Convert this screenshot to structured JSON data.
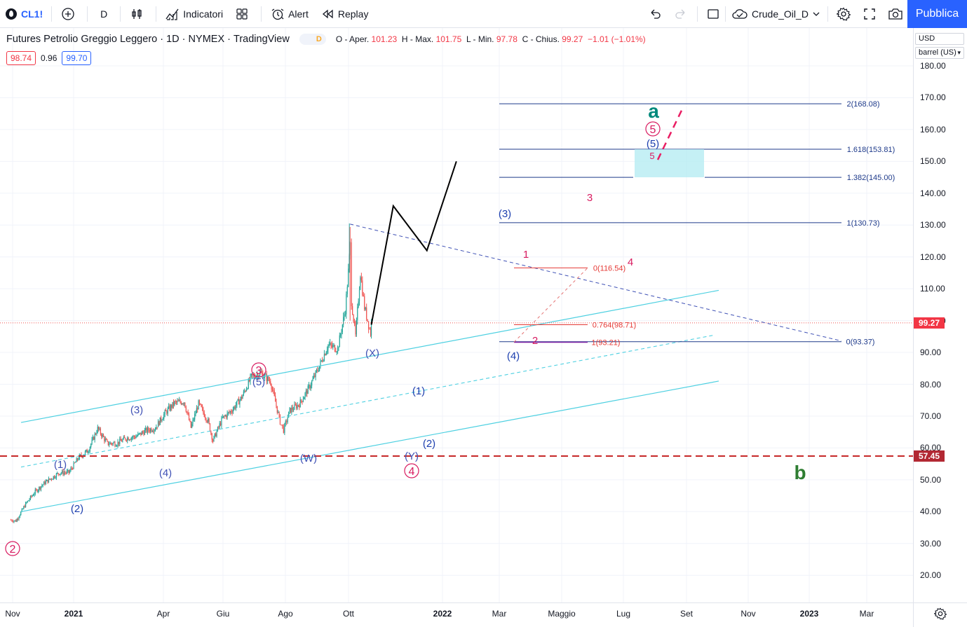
{
  "toolbar": {
    "symbol": "CL1!",
    "interval": "D",
    "indicators_label": "Indicatori",
    "alert_label": "Alert",
    "replay_label": "Replay",
    "layout_name": "Crude_Oil_D",
    "publish_label": "Pubblica"
  },
  "legend": {
    "title": "Futures Petrolio Greggio Leggero",
    "interval": "1D",
    "exchange": "NYMEX",
    "source": "TradingView",
    "badge": "D",
    "open_label": "O - Aper.",
    "open": "101.23",
    "high_label": "H - Max.",
    "high": "101.75",
    "low_label": "L - Min.",
    "low": "97.78",
    "close_label": "C - Chius.",
    "close": "99.27",
    "change": "−1.01 (−1.01%)",
    "bid": "98.74",
    "spread": "0.96",
    "ask": "99.70"
  },
  "price_axis": {
    "currency": "USD",
    "unit": "barrel (US)",
    "labels": [
      "180.00",
      "170.00",
      "160.00",
      "150.00",
      "140.00",
      "130.00",
      "120.00",
      "110.00",
      "100.00",
      "90.00",
      "80.00",
      "70.00",
      "60.00",
      "50.00",
      "40.00",
      "30.00",
      "20.00"
    ],
    "current_price": "99.27",
    "level_price": "57.45"
  },
  "time_axis": {
    "labels": [
      "Nov",
      "2021",
      "Apr",
      "Giu",
      "Ago",
      "Ott",
      "2022",
      "Mar",
      "Maggio",
      "Lug",
      "Set",
      "Nov",
      "2023",
      "Mar"
    ],
    "bold": [
      "2021",
      "2022",
      "2023"
    ]
  },
  "annotations": {
    "fib_ext": [
      "2(168.08)",
      "1.618(153.81)",
      "1.382(145.00)",
      "1(130.73)",
      "0(93.37)"
    ],
    "fib_retr": [
      "0(116.54)",
      "0.764(98.71)",
      "1(93.21)"
    ],
    "waves": [
      "(3)",
      "(4)",
      "(5)",
      "(1)",
      "(2)",
      "(X)",
      "(W)",
      "(Y)",
      "1",
      "2",
      "3",
      "4",
      "5",
      "a",
      "b"
    ],
    "circled": [
      "2",
      "3",
      "4",
      "5"
    ]
  },
  "colors": {
    "up": "#26a69a",
    "down": "#ef5350",
    "accent": "#2962ff",
    "channel": "#4dd0e1",
    "fib_blue": "#1e3a8a",
    "wave_red": "#d81b60",
    "level_red": "#c62828"
  },
  "chart_data": {
    "type": "candlestick",
    "title": "Futures Petrolio Greggio Leggero · 1D · NYMEX",
    "close_series": [
      {
        "date": "2020-10-28",
        "close": 37.4
      },
      {
        "date": "2020-11-06",
        "close": 37.1
      },
      {
        "date": "2020-11-20",
        "close": 42.4
      },
      {
        "date": "2020-12-04",
        "close": 46.3
      },
      {
        "date": "2020-12-18",
        "close": 49.1
      },
      {
        "date": "2021-01-08",
        "close": 52.2
      },
      {
        "date": "2021-01-22",
        "close": 52.3
      },
      {
        "date": "2021-02-05",
        "close": 56.9
      },
      {
        "date": "2021-02-19",
        "close": 59.2
      },
      {
        "date": "2021-03-05",
        "close": 66.1
      },
      {
        "date": "2021-03-19",
        "close": 61.4
      },
      {
        "date": "2021-04-02",
        "close": 61.5
      },
      {
        "date": "2021-04-16",
        "close": 63.1
      },
      {
        "date": "2021-04-30",
        "close": 63.6
      },
      {
        "date": "2021-05-14",
        "close": 65.4
      },
      {
        "date": "2021-05-28",
        "close": 66.3
      },
      {
        "date": "2021-06-11",
        "close": 70.9
      },
      {
        "date": "2021-06-25",
        "close": 74.1
      },
      {
        "date": "2021-07-09",
        "close": 74.6
      },
      {
        "date": "2021-07-19",
        "close": 66.4
      },
      {
        "date": "2021-07-30",
        "close": 73.9
      },
      {
        "date": "2021-08-13",
        "close": 68.4
      },
      {
        "date": "2021-08-20",
        "close": 62.3
      },
      {
        "date": "2021-09-03",
        "close": 69.3
      },
      {
        "date": "2021-09-17",
        "close": 71.9
      },
      {
        "date": "2021-10-01",
        "close": 75.9
      },
      {
        "date": "2021-10-15",
        "close": 82.3
      },
      {
        "date": "2021-10-29",
        "close": 83.6
      },
      {
        "date": "2021-11-12",
        "close": 80.8
      },
      {
        "date": "2021-11-26",
        "close": 68.2
      },
      {
        "date": "2021-12-01",
        "close": 65.6
      },
      {
        "date": "2021-12-10",
        "close": 71.7
      },
      {
        "date": "2021-12-24",
        "close": 73.8
      },
      {
        "date": "2022-01-07",
        "close": 78.9
      },
      {
        "date": "2022-01-21",
        "close": 85.1
      },
      {
        "date": "2022-02-04",
        "close": 92.3
      },
      {
        "date": "2022-02-18",
        "close": 91.1
      },
      {
        "date": "2022-03-01",
        "close": 103.4
      },
      {
        "date": "2022-03-07",
        "close": 119.4
      },
      {
        "date": "2022-03-08",
        "close": 123.7
      },
      {
        "date": "2022-03-10",
        "close": 106.0
      },
      {
        "date": "2022-03-16",
        "close": 95.0
      },
      {
        "date": "2022-03-23",
        "close": 114.9
      },
      {
        "date": "2022-03-29",
        "close": 104.2
      },
      {
        "date": "2022-04-07",
        "close": 96.0
      },
      {
        "date": "2022-04-08",
        "close": 99.27
      }
    ],
    "projection": [
      {
        "date": "2022-04-08",
        "price": 98.7
      },
      {
        "date": "2022-05-10",
        "price": 136.0
      },
      {
        "date": "2022-06-28",
        "price": 122.0
      },
      {
        "date": "2022-08-10",
        "price": 150.0
      }
    ],
    "horizontal_level": 57.45,
    "ylim": [
      20,
      185
    ]
  }
}
